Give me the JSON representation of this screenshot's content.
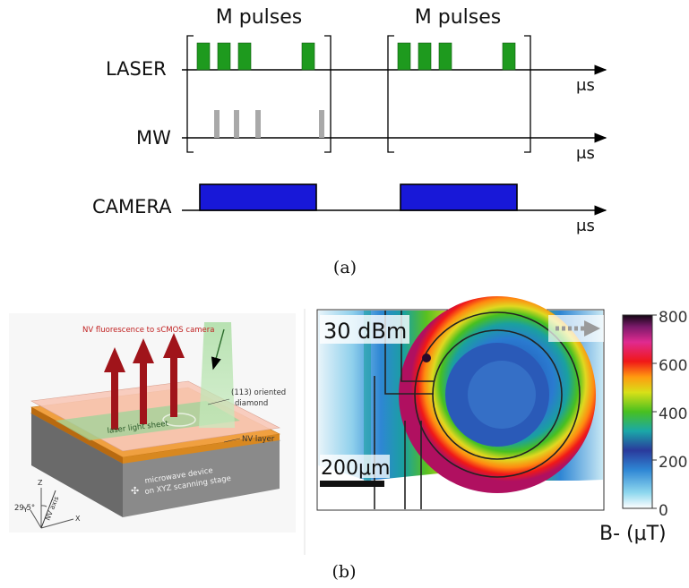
{
  "timing": {
    "group_label": "M pulses",
    "channels": [
      {
        "label": "LASER",
        "unit": "μs"
      },
      {
        "label": "MW",
        "unit": "μs"
      },
      {
        "label": "CAMERA",
        "unit": "μs"
      }
    ],
    "caption": "(a)",
    "colors": {
      "laser": "#1e9a1e",
      "mw": "#a9a9a9",
      "camera": "#1818d8"
    }
  },
  "setup": {
    "fluorescence_label": "NV fluorescence to sCMOS camera",
    "diamond_label_1": "(113) oriented",
    "diamond_label_2": "diamond",
    "sheet_label": "laser light sheet",
    "nv_layer_label": "NV layer",
    "device_label_1": "microwave device",
    "device_label_2": "on XYZ scanning stage",
    "angle_label": "29.5°",
    "axis_x": "X",
    "axis_y": "Y",
    "axis_z": "Z",
    "nv_axis_label": "NV axis"
  },
  "map": {
    "power_label": "30 dBm",
    "scale_label": "200μm",
    "colorbar_ticks": [
      "800",
      "600",
      "400",
      "200",
      "0"
    ],
    "colorbar_label": "B- (μT)"
  },
  "caption_b": "(b)"
}
